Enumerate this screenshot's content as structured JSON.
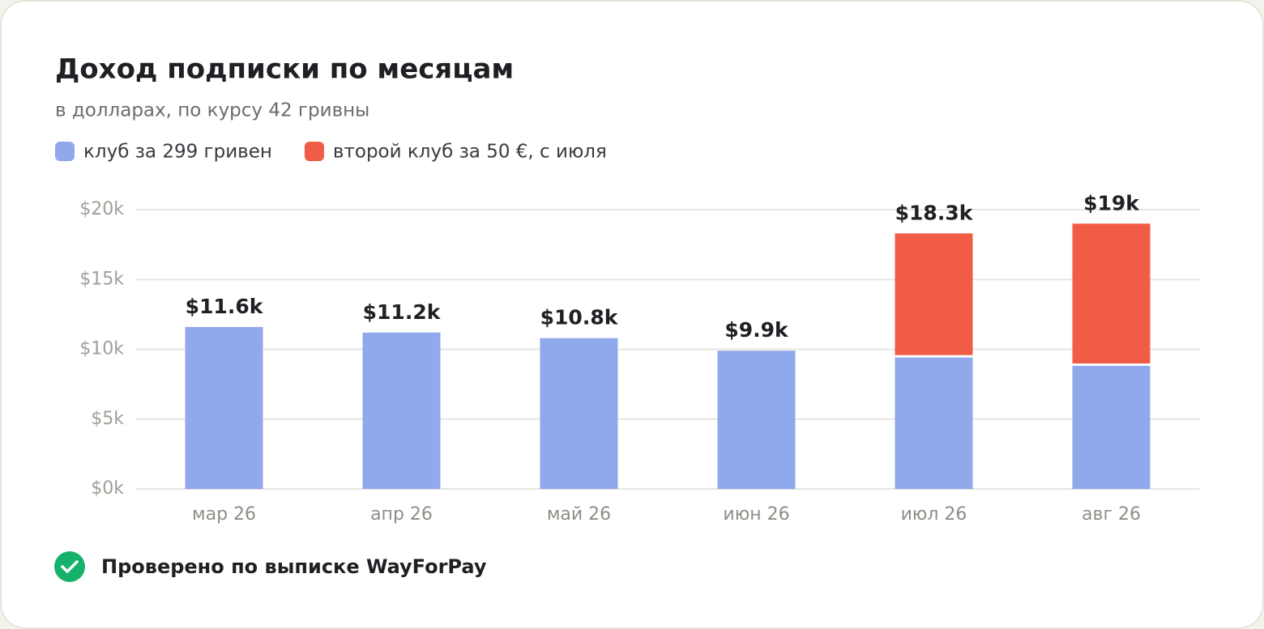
{
  "chart_data": {
    "type": "stacked_bar",
    "title": "Доход подписки по месяцам",
    "subtitle": "в долларах, по курсу 42 гривны",
    "categories": [
      "мар 26",
      "апр 26",
      "май 26",
      "июн 26",
      "июл 26",
      "авг 26"
    ],
    "series": [
      {
        "name": "клуб за 299 гривен",
        "color": "#90a8ec",
        "values": [
          11600,
          11200,
          10800,
          9900,
          9500,
          8900
        ]
      },
      {
        "name": "второй клуб за 50 €, с июля",
        "color": "#f05c46",
        "values": [
          null,
          null,
          null,
          null,
          8800,
          10100
        ]
      }
    ],
    "total_labels": [
      "$11.6k",
      "$11.2k",
      "$10.8k",
      "$9.9k",
      "$18.3k",
      "$19k"
    ],
    "ylim": [
      0,
      20000
    ],
    "yticks": [
      {
        "value": 0,
        "label": "$0k"
      },
      {
        "value": 5000,
        "label": "$5k"
      },
      {
        "value": 10000,
        "label": "$10k"
      },
      {
        "value": 15000,
        "label": "$15k"
      },
      {
        "value": 20000,
        "label": "$20k"
      }
    ],
    "grid": true,
    "footnote": "Проверено по выписке WayForPay"
  }
}
